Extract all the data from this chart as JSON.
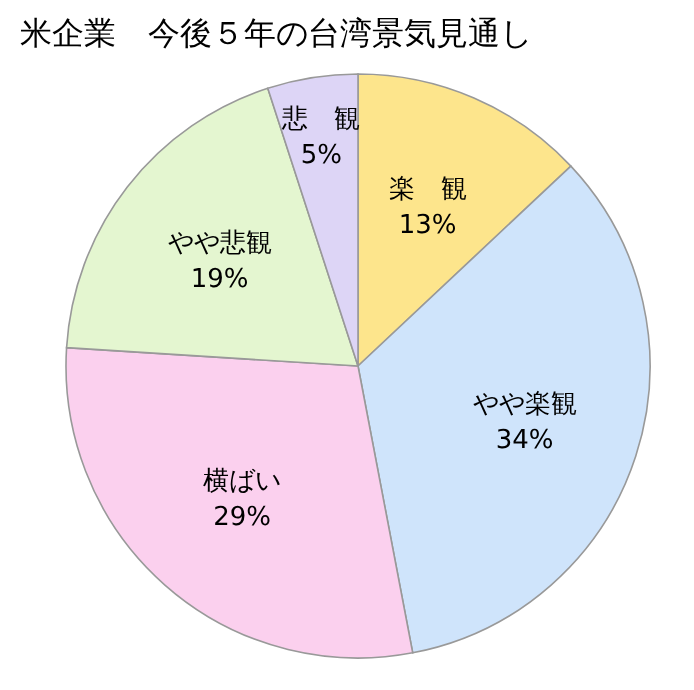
{
  "chart_data": {
    "type": "pie",
    "title": "米企業　今後５年の台湾景気見通し",
    "categories": [
      "楽　観",
      "やや楽観",
      "横ばい",
      "やや悲観",
      "悲　観"
    ],
    "values": [
      13,
      34,
      29,
      19,
      5
    ],
    "value_labels": [
      "13%",
      "34%",
      "29%",
      "19%",
      "5%"
    ],
    "colors": [
      "#fde58c",
      "#cfe4fb",
      "#fbd0ee",
      "#e4f6d0",
      "#ddd5f6"
    ]
  }
}
